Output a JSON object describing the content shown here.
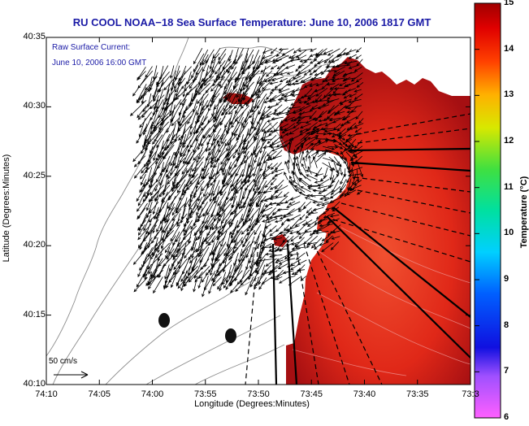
{
  "title": "RU COOL  NOAA−18  Sea Surface Temperature:  June 10, 2006 1817 GMT",
  "annotation_current": "Raw Surface Current:",
  "annotation_time": "June 10, 2006 16:00 GMT",
  "scale_label": "50 cm/s",
  "x_axis": {
    "label": "Longitude (Degrees:Minutes)",
    "ticks": [
      "74:10",
      "74:05",
      "74:00",
      "73:55",
      "73:50",
      "73:45",
      "73:40",
      "73:35",
      "73:3"
    ]
  },
  "y_axis": {
    "label": "Latitude (Degrees:Minutes)",
    "ticks": [
      "40:35",
      "40:30",
      "40:25",
      "40:20",
      "40:15",
      "40:10"
    ]
  },
  "colorbar": {
    "label": "Temperature (°C)",
    "ticks": [
      "15",
      "14",
      "13",
      "12",
      "11",
      "10",
      "9",
      "8",
      "7",
      "6"
    ],
    "min": 6,
    "max": 15
  },
  "colors": {
    "title": "#1a1aa6",
    "sst_core": "#e02818",
    "sst_edge": "#a50f12"
  }
}
